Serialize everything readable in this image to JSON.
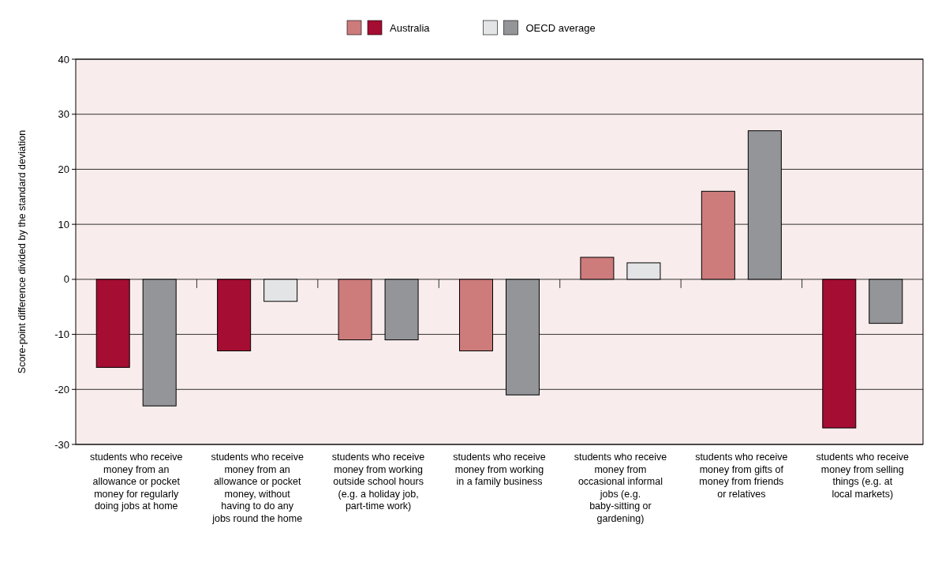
{
  "chart_data": {
    "type": "bar",
    "ylabel": "Score-point difference divided by the standard deviation",
    "categories": [
      "students who receive money from an allowance or pocket money for regularly doing jobs at home",
      "students who receive money from an allowance or pocket money, without having to do any jobs round the home",
      "students who receive money from working outside school hours (e.g. a holiday job, part-time work)",
      "students who receive money from working in a family business",
      "students who receive money from occasional informal jobs (e.g. baby-sitting or gardening)",
      "students who receive money from gifts of money from friends or relatives",
      "students who receive money from selling things (e.g. at local markets)"
    ],
    "series": [
      {
        "name": "Australia",
        "values": [
          -16,
          -13,
          -11,
          -13,
          4,
          16,
          -27
        ],
        "colors": [
          "#a50d32",
          "#a50d32",
          "#cd7b7b",
          "#cd7b7b",
          "#cd7b7b",
          "#cd7b7b",
          "#a50d32"
        ]
      },
      {
        "name": "OECD average",
        "values": [
          -23,
          -4,
          -11,
          -21,
          3,
          27,
          -8
        ],
        "colors": [
          "#939598",
          "#e3e4e5",
          "#939598",
          "#939598",
          "#e3e4e5",
          "#939598",
          "#939598"
        ]
      }
    ],
    "ylim": [
      -30,
      40
    ],
    "yticks": [
      -30,
      -20,
      -10,
      0,
      10,
      20,
      30,
      40
    ],
    "grid": "y",
    "legend": "top"
  }
}
